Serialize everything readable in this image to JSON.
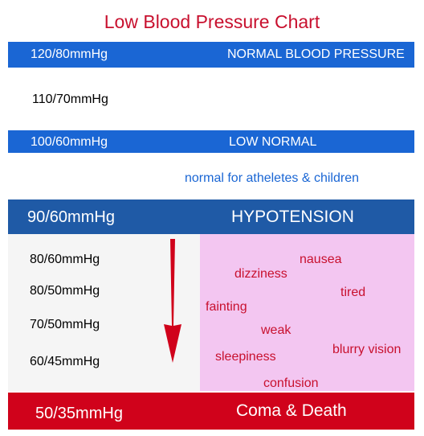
{
  "title": "Low Blood Pressure Chart",
  "rows": {
    "r1": {
      "value": "120/80mmHg",
      "label": "NORMAL BLOOD PRESSURE"
    },
    "r2": {
      "value": "110/70mmHg"
    },
    "r3": {
      "value": "100/60mmHg",
      "label": "LOW NORMAL"
    },
    "note": "normal for atheletes & children",
    "hypo": {
      "value": "90/60mmHg",
      "label": "HYPOTENSION"
    },
    "lower": [
      "80/60mmHg",
      "80/50mmHg",
      "70/50mmHg",
      "60/45mmHg"
    ],
    "death": {
      "value": "50/35mmHg",
      "label": "Coma & Death"
    }
  },
  "symptoms": [
    "nausea",
    "dizziness",
    "tired",
    "fainting",
    "weak",
    "blurry vision",
    "sleepiness",
    "confusion"
  ],
  "colors": {
    "title": "#c8102e",
    "blue_band": "#1a66d4",
    "dark_band": "#1f5aa6",
    "red_band": "#d0021b",
    "symptom_panel": "#f3c6f1",
    "arrow": "#d0021b"
  }
}
